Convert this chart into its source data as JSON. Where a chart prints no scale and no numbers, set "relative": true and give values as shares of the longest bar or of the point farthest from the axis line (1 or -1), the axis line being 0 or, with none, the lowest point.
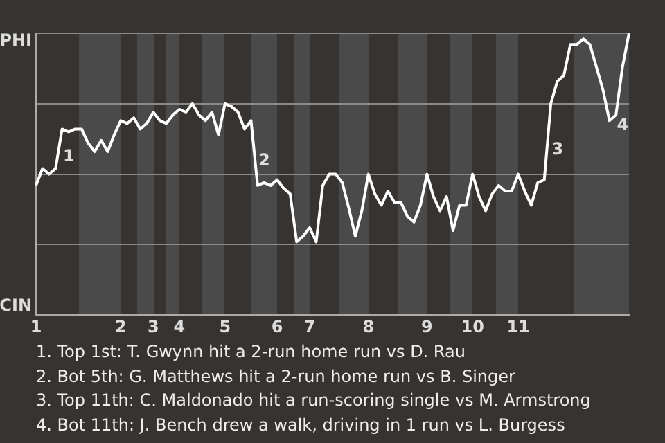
{
  "chart_data": {
    "type": "line",
    "relative": true,
    "categories": [
      "1",
      null,
      null,
      null,
      null,
      null,
      null,
      null,
      null,
      null,
      null,
      null,
      null,
      "2",
      null,
      null,
      null,
      null,
      "3",
      null,
      null,
      null,
      "4",
      null,
      null,
      null,
      null,
      null,
      null,
      "5",
      null,
      null,
      null,
      null,
      null,
      null,
      null,
      "6",
      null,
      null,
      null,
      null,
      "7",
      null,
      null,
      null,
      null,
      null,
      null,
      null,
      null,
      "8",
      null,
      null,
      null,
      null,
      null,
      null,
      null,
      null,
      "9",
      null,
      null,
      null,
      null,
      null,
      null,
      "10",
      null,
      null,
      null,
      null,
      null,
      null,
      "11",
      null,
      null,
      null,
      null,
      null,
      null,
      null,
      null,
      null,
      null,
      null,
      null,
      null,
      null,
      null,
      null,
      null
    ],
    "series": [
      {
        "color": "#ffffff",
        "values": [
          0.46,
          0.52,
          0.5,
          0.52,
          0.66,
          0.65,
          0.66,
          0.66,
          0.61,
          0.58,
          0.62,
          0.58,
          0.64,
          0.69,
          0.68,
          0.7,
          0.66,
          0.68,
          0.72,
          0.69,
          0.68,
          0.71,
          0.73,
          0.72,
          0.75,
          0.71,
          0.69,
          0.72,
          0.64,
          0.75,
          0.74,
          0.72,
          0.66,
          0.69,
          0.46,
          0.47,
          0.46,
          0.48,
          0.45,
          0.43,
          0.26,
          0.28,
          0.31,
          0.26,
          0.46,
          0.5,
          0.5,
          0.47,
          0.38,
          0.28,
          0.37,
          0.5,
          0.43,
          0.39,
          0.44,
          0.4,
          0.4,
          0.35,
          0.33,
          0.39,
          0.5,
          0.42,
          0.37,
          0.42,
          0.3,
          0.39,
          0.39,
          0.5,
          0.42,
          0.37,
          0.43,
          0.46,
          0.44,
          0.44,
          0.5,
          0.44,
          0.39,
          0.47,
          0.48,
          0.75,
          0.83,
          0.85,
          0.96,
          0.96,
          0.98,
          0.96,
          0.88,
          0.8,
          0.69,
          0.71,
          0.88,
          1
        ]
      }
    ],
    "grid": "y",
    "legend": false,
    "marker": "none",
    "line_style": "solid",
    "annotations": [
      "PHI",
      "CIN",
      "1",
      "2",
      "3",
      "4",
      "1. Top 1st: T. Gwynn hit a 2-run home run vs D. Rau",
      "2. Bot 5th: G. Matthews hit a 2-run home run vs B. Singer",
      "3. Top 11th: C. Maldonado hit a run-scoring single vs M. Armstrong",
      "4. Bot 11th: J. Bench drew a walk, driving in 1 run vs L. Burgess"
    ]
  }
}
